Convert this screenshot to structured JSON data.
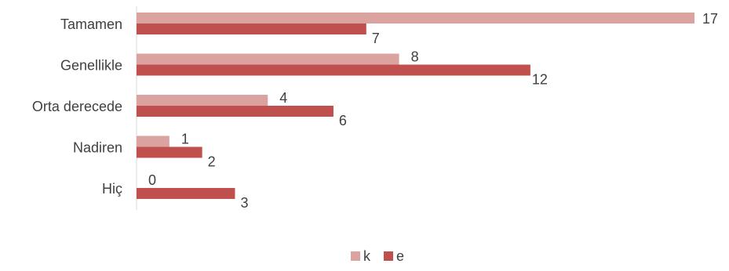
{
  "chart_data": {
    "type": "bar",
    "orientation": "horizontal",
    "categories": [
      "Tamamen",
      "Genellikle",
      "Orta derecede",
      "Nadiren",
      "Hiç"
    ],
    "series": [
      {
        "name": "k",
        "values": [
          17,
          8,
          4,
          1,
          0
        ],
        "color": "#dba3a0"
      },
      {
        "name": "e",
        "values": [
          7,
          12,
          6,
          2,
          3
        ],
        "color": "#c0504d"
      }
    ],
    "xlim": [
      0,
      17
    ],
    "grid": false,
    "legend_position": "bottom"
  }
}
